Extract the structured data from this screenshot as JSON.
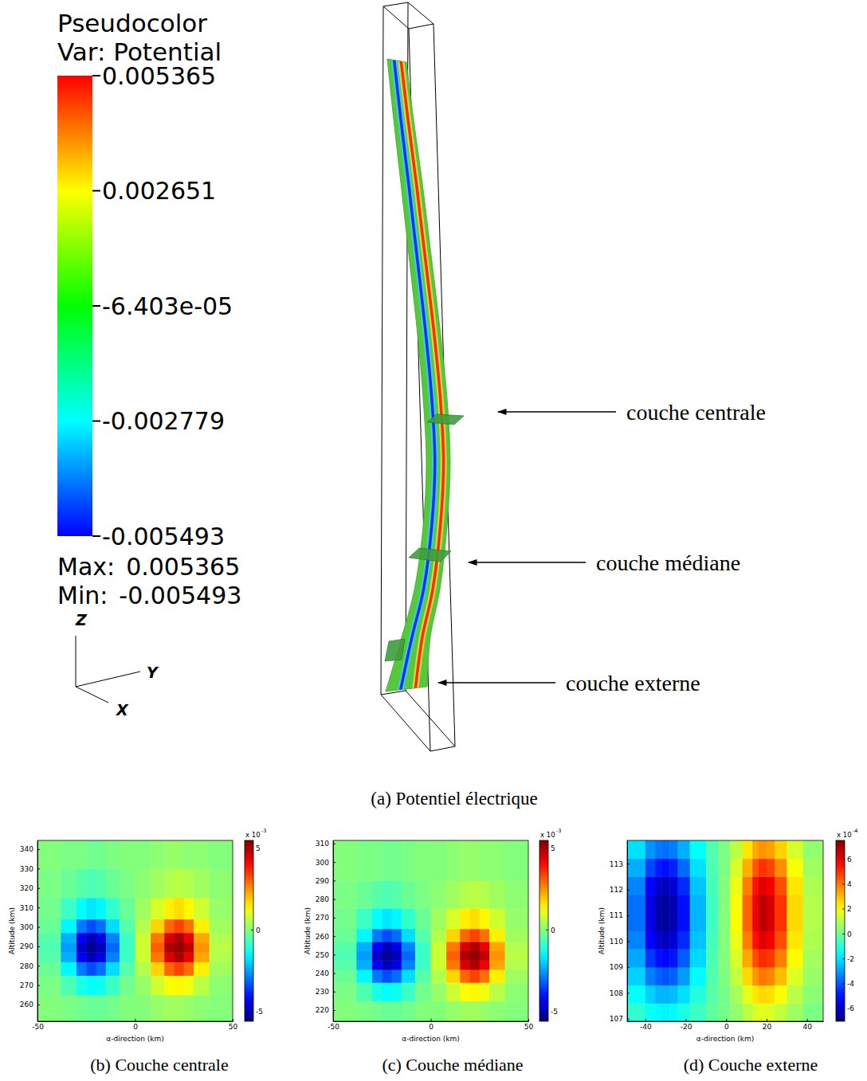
{
  "chart_data": [
    {
      "type": "pseudocolor",
      "title": "Pseudocolor",
      "subtitle": "Var: Potential",
      "caption": "(a) Potentiel électrique",
      "colorbar": {
        "range": [
          -0.005493,
          0.005365
        ],
        "ticks": [
          0.005365,
          0.002651,
          {
            "value": -6.403e-05,
            "label": "-6.403e-05"
          },
          -0.002779,
          -0.005493
        ]
      },
      "max_label": "Max:",
      "max": 0.005365,
      "min_label": "Min:",
      "min": -0.005493,
      "axis_names": {
        "z": "Z",
        "y": "Y",
        "x": "X"
      },
      "annotations": [
        "couche centrale",
        "couche médiane",
        "couche externe"
      ]
    },
    {
      "type": "heatmap",
      "caption": "(b) Couche centrale",
      "xlabel": "α-direction (km)",
      "ylabel": "Altitude (km)",
      "xlim": [
        -50,
        50
      ],
      "ylim": [
        251.4,
        344.5
      ],
      "xticks": [
        -50,
        0,
        50
      ],
      "yticks": [
        260,
        270,
        280,
        290,
        300,
        310,
        320,
        330,
        340
      ],
      "x_edges": [
        -50,
        -38,
        -30,
        -25,
        -20,
        -15,
        -8,
        0,
        8,
        15,
        20,
        25,
        30,
        38,
        50
      ],
      "y_edges": [
        251.4,
        265,
        275,
        282,
        287,
        292,
        297,
        304,
        315,
        330,
        344.5
      ],
      "z": [
        [
          0,
          -0.1,
          -0.2,
          -0.3,
          -0.3,
          -0.2,
          0,
          0,
          0.2,
          0.3,
          0.3,
          0.2,
          0.1,
          0
        ],
        [
          -0.1,
          -0.6,
          -1.2,
          -1.4,
          -1.3,
          -0.8,
          -0.2,
          0.2,
          0.8,
          1.3,
          1.4,
          1.2,
          0.6,
          0.1
        ],
        [
          -0.3,
          -1.5,
          -2.9,
          -3.4,
          -3.0,
          -1.8,
          -0.5,
          0.5,
          1.8,
          3.0,
          3.4,
          2.9,
          1.5,
          0.3
        ],
        [
          -0.5,
          -2.3,
          -4.3,
          -5.0,
          -4.5,
          -2.8,
          -0.8,
          0.8,
          2.8,
          4.5,
          5.0,
          4.3,
          2.3,
          0.5
        ],
        [
          -0.6,
          -2.5,
          -4.8,
          -5.4,
          -5.0,
          -3.1,
          -0.8,
          0.8,
          3.1,
          5.0,
          5.3,
          4.8,
          2.5,
          0.6
        ],
        [
          -0.5,
          -2.3,
          -4.3,
          -5.0,
          -4.5,
          -2.8,
          -0.8,
          0.8,
          2.8,
          4.5,
          5.0,
          4.3,
          2.3,
          0.5
        ],
        [
          -0.3,
          -1.5,
          -2.9,
          -3.4,
          -3.0,
          -1.8,
          -0.5,
          0.5,
          1.8,
          3.0,
          3.4,
          2.9,
          1.5,
          0.3
        ],
        [
          -0.2,
          -0.8,
          -1.4,
          -1.7,
          -1.5,
          -0.9,
          -0.3,
          0.3,
          0.9,
          1.5,
          1.7,
          1.4,
          0.8,
          0.2
        ],
        [
          -0.1,
          -0.3,
          -0.5,
          -0.6,
          -0.5,
          -0.3,
          -0.1,
          0.1,
          0.3,
          0.5,
          0.6,
          0.5,
          0.3,
          0.1
        ],
        [
          0,
          -0.1,
          -0.1,
          -0.2,
          -0.2,
          -0.1,
          0,
          0,
          0.1,
          0.2,
          0.2,
          0.1,
          0.1,
          0
        ]
      ],
      "colorbar": {
        "range": [
          -5.6,
          5.5
        ],
        "ticks": [
          -5,
          0,
          5
        ],
        "multiplier": "x 10",
        "exponent": -3
      }
    },
    {
      "type": "heatmap",
      "caption": "(c) Couche médiane",
      "xlabel": "α-direction (km)",
      "ylabel": "Altitude (km)",
      "xlim": [
        -50,
        50
      ],
      "ylim": [
        214,
        311.7
      ],
      "xticks": [
        -50,
        0,
        50
      ],
      "yticks": [
        220,
        230,
        240,
        250,
        260,
        270,
        280,
        290,
        300,
        310
      ],
      "x_edges": [
        -50,
        -38,
        -30,
        -25,
        -20,
        -15,
        -8,
        0,
        8,
        15,
        20,
        25,
        30,
        38,
        50
      ],
      "y_edges": [
        214,
        225,
        235,
        242,
        247,
        252,
        257,
        264,
        275,
        290,
        311.7
      ],
      "z": [
        [
          0,
          -0.1,
          -0.2,
          -0.3,
          -0.3,
          -0.2,
          0,
          0,
          0.2,
          0.3,
          0.3,
          0.2,
          0.1,
          0
        ],
        [
          -0.1,
          -0.6,
          -1.2,
          -1.4,
          -1.3,
          -0.8,
          -0.2,
          0.2,
          0.8,
          1.3,
          1.4,
          1.2,
          0.6,
          0.1
        ],
        [
          -0.3,
          -1.5,
          -2.9,
          -3.4,
          -3.0,
          -1.8,
          -0.5,
          0.5,
          1.8,
          3.0,
          3.4,
          2.9,
          1.5,
          0.3
        ],
        [
          -0.5,
          -2.3,
          -4.3,
          -5.0,
          -4.5,
          -2.8,
          -0.8,
          0.8,
          2.8,
          4.5,
          5.0,
          4.3,
          2.3,
          0.5
        ],
        [
          -0.6,
          -2.5,
          -4.8,
          -5.4,
          -5.0,
          -3.1,
          -0.8,
          0.8,
          3.1,
          5.0,
          5.3,
          4.8,
          2.5,
          0.6
        ],
        [
          -0.5,
          -2.3,
          -4.3,
          -5.0,
          -4.5,
          -2.8,
          -0.8,
          0.8,
          2.8,
          4.5,
          5.0,
          4.3,
          2.3,
          0.5
        ],
        [
          -0.3,
          -1.5,
          -2.9,
          -3.4,
          -3.0,
          -1.8,
          -0.5,
          0.5,
          1.8,
          3.0,
          3.4,
          2.9,
          1.5,
          0.3
        ],
        [
          -0.2,
          -0.8,
          -1.4,
          -1.7,
          -1.5,
          -0.9,
          -0.3,
          0.3,
          0.9,
          1.5,
          1.7,
          1.4,
          0.8,
          0.2
        ],
        [
          -0.1,
          -0.3,
          -0.5,
          -0.6,
          -0.5,
          -0.3,
          -0.1,
          0.1,
          0.3,
          0.5,
          0.6,
          0.5,
          0.3,
          0.1
        ],
        [
          0,
          -0.1,
          -0.1,
          -0.2,
          -0.2,
          -0.1,
          0,
          0,
          0.1,
          0.2,
          0.2,
          0.1,
          0.1,
          0
        ]
      ],
      "colorbar": {
        "range": [
          -5.6,
          5.5
        ],
        "ticks": [
          -5,
          0,
          5
        ],
        "multiplier": "x 10",
        "exponent": -3
      }
    },
    {
      "type": "heatmap",
      "caption": "(d) Couche externe",
      "xlabel": "α-direction (km)",
      "ylabel": "Altitude (km)",
      "xlim": [
        -49,
        48
      ],
      "ylim": [
        106.9,
        113.9
      ],
      "xticks": [
        -40,
        -20,
        0,
        20,
        40
      ],
      "yticks": [
        107,
        108,
        109,
        110,
        111,
        112,
        113
      ],
      "x_edges": [
        -49,
        -40,
        -35,
        -32,
        -28,
        -24,
        -18,
        -10,
        -4,
        2,
        8,
        13,
        16,
        20,
        24,
        30,
        38,
        48
      ],
      "y_edges": [
        106.9,
        107.6,
        108.3,
        109,
        109.7,
        110.4,
        111.1,
        111.8,
        112.5,
        113.2,
        113.9
      ],
      "z": [
        [
          -0.9,
          -1.4,
          -1.6,
          -1.7,
          -1.6,
          -1.2,
          -0.7,
          -0.2,
          0.1,
          0.5,
          1.1,
          1.5,
          1.7,
          1.6,
          1.2,
          0.7,
          0.2
        ],
        [
          -1.5,
          -2.2,
          -2.6,
          -2.6,
          -2.5,
          -2.0,
          -1.1,
          -0.3,
          0.1,
          0.8,
          1.7,
          2.4,
          2.6,
          2.5,
          2.0,
          1.1,
          0.4
        ],
        [
          -2.2,
          -3.4,
          -3.8,
          -4.0,
          -3.8,
          -3.0,
          -1.6,
          -0.4,
          0.2,
          1.2,
          2.6,
          3.6,
          4.0,
          3.8,
          3.0,
          1.6,
          0.6
        ],
        [
          -2.8,
          -4.4,
          -5.0,
          -5.1,
          -4.9,
          -3.9,
          -2.1,
          -0.5,
          0.3,
          1.5,
          3.3,
          4.6,
          5.1,
          4.9,
          3.9,
          2.1,
          0.8
        ],
        [
          -3.3,
          -5.2,
          -5.9,
          -6.1,
          -5.8,
          -4.6,
          -2.4,
          -0.6,
          0.3,
          1.8,
          3.9,
          5.5,
          6.1,
          5.8,
          4.6,
          2.4,
          0.9
        ],
        [
          -3.6,
          -5.6,
          -6.4,
          -6.6,
          -6.3,
          -5.0,
          -2.6,
          -0.7,
          0.3,
          2.0,
          4.3,
          5.9,
          6.6,
          6.3,
          5.0,
          2.6,
          1.0
        ],
        [
          -3.6,
          -5.6,
          -6.4,
          -6.6,
          -6.3,
          -5.0,
          -2.6,
          -0.7,
          0.3,
          2.0,
          4.3,
          5.9,
          6.6,
          6.3,
          5.0,
          2.6,
          1.0
        ],
        [
          -3.3,
          -5.2,
          -5.9,
          -6.1,
          -5.8,
          -4.6,
          -2.4,
          -0.6,
          0.3,
          1.8,
          3.9,
          5.5,
          6.1,
          5.8,
          4.6,
          2.4,
          0.9
        ],
        [
          -2.7,
          -4.2,
          -4.8,
          -5.0,
          -4.7,
          -3.7,
          -2.0,
          -0.5,
          0.2,
          1.5,
          3.2,
          4.5,
          5.0,
          4.7,
          3.7,
          2.0,
          0.7
        ],
        [
          -2.0,
          -3.1,
          -3.5,
          -3.6,
          -3.4,
          -2.7,
          -1.5,
          -0.4,
          0.2,
          1.1,
          2.4,
          3.3,
          3.6,
          3.4,
          2.7,
          1.5,
          0.5
        ]
      ],
      "colorbar": {
        "range": [
          -7.0,
          7.5
        ],
        "ticks": [
          -6,
          -4,
          -2,
          0,
          2,
          4,
          6
        ],
        "multiplier": "x 10",
        "exponent": -4
      }
    }
  ]
}
